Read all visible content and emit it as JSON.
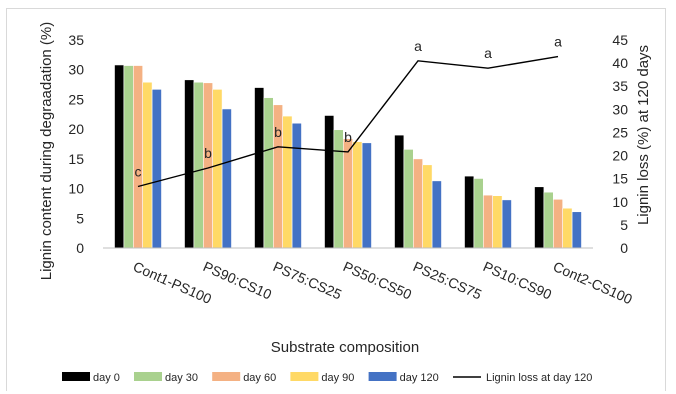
{
  "chart_data": {
    "type": "bar",
    "xlabel": "Substrate composition",
    "ylabel": "Lignin content during degraadation (%)",
    "y2label": "Lignin loss (%) at 120 days",
    "ylim": [
      0,
      35
    ],
    "y2lim": [
      0,
      45
    ],
    "yticks": [
      "0",
      "5",
      "10",
      "15",
      "20",
      "25",
      "30",
      "35"
    ],
    "y2ticks": [
      "0",
      "5",
      "10",
      "15",
      "20",
      "25",
      "30",
      "35",
      "40",
      "45"
    ],
    "grid": false,
    "legend_position": "bottom",
    "categories": [
      "Cont1-PS100",
      "PS90:CS10",
      "PS75:CS25",
      "PS50:CS50",
      "PS25:CS75",
      "PS10:CS90",
      "Cont2-CS100"
    ],
    "series": [
      {
        "name": "day 0",
        "color": "#000000",
        "values": [
          30.8,
          28.3,
          27.0,
          22.3,
          19.0,
          12.1,
          10.3
        ]
      },
      {
        "name": "day 30",
        "color": "#a9d18e",
        "values": [
          30.7,
          27.9,
          25.3,
          19.9,
          16.6,
          11.7,
          9.4
        ]
      },
      {
        "name": "day 60",
        "color": "#f4b183",
        "values": [
          30.7,
          27.8,
          24.1,
          18.4,
          15.0,
          8.9,
          8.2
        ]
      },
      {
        "name": "day 90",
        "color": "#ffd966",
        "values": [
          27.9,
          26.7,
          22.2,
          17.9,
          14.0,
          8.8,
          6.7
        ]
      },
      {
        "name": "day 120",
        "color": "#4472c4",
        "values": [
          26.7,
          23.4,
          21.0,
          17.7,
          11.3,
          8.1,
          6.1
        ]
      }
    ],
    "line_series": {
      "name": "Lignin loss at day 120",
      "color": "#000000",
      "axis": "y2",
      "values": [
        13.3,
        17.3,
        21.9,
        20.8,
        40.5,
        38.9,
        41.4
      ],
      "annotations": [
        "c",
        "b",
        "b",
        "b",
        "a",
        "a",
        "a"
      ]
    }
  }
}
